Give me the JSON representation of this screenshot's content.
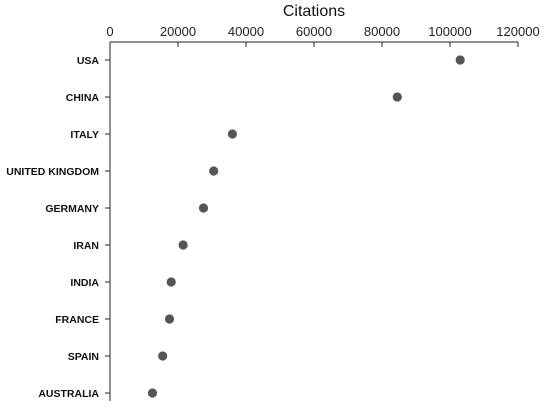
{
  "chart_data": {
    "type": "scatter",
    "xlabel": "Citations",
    "ylabel": "",
    "xlim": [
      0,
      120000
    ],
    "xticks": [
      0,
      20000,
      40000,
      60000,
      80000,
      100000,
      120000
    ],
    "x_axis_position": "top",
    "grid": false,
    "categories": [
      "USA",
      "CHINA",
      "ITALY",
      "UNITED KINGDOM",
      "GERMANY",
      "IRAN",
      "INDIA",
      "FRANCE",
      "SPAIN",
      "AUSTRALIA"
    ],
    "series": [
      {
        "values": [
          103000,
          84500,
          36000,
          30500,
          27500,
          21500,
          18000,
          17500,
          15500,
          12500
        ]
      }
    ],
    "colors": {
      "marker": "#555555",
      "axis": "#222222"
    }
  }
}
